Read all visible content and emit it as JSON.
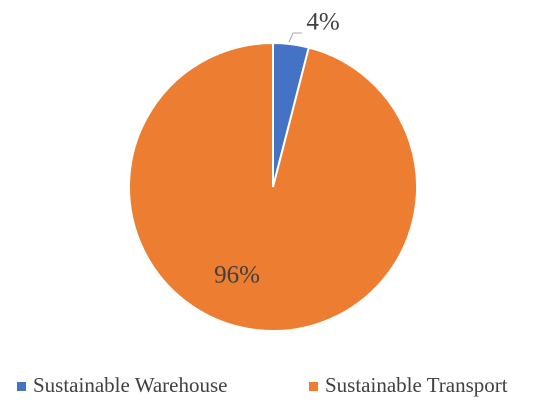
{
  "chart_data": {
    "type": "pie",
    "categories": [
      "Sustainable Warehouse",
      "Sustainable Transport"
    ],
    "values": [
      4,
      96
    ],
    "value_labels": [
      "4%",
      "96%"
    ],
    "colors": [
      "#4472c4",
      "#ed7d31"
    ],
    "legend": "bottom"
  }
}
